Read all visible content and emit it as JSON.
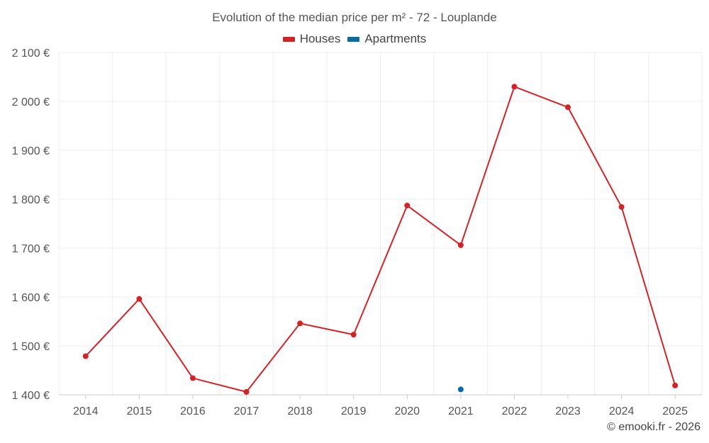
{
  "chart_data": {
    "type": "line",
    "title": "Evolution of the median price per m² - 72 - Louplande",
    "categories": [
      "2014",
      "2015",
      "2016",
      "2017",
      "2018",
      "2019",
      "2020",
      "2021",
      "2022",
      "2023",
      "2024",
      "2025"
    ],
    "series": [
      {
        "name": "Houses",
        "color": "#d22327",
        "values": [
          1479,
          1596,
          1434,
          1406,
          1546,
          1523,
          1787,
          1706,
          2030,
          1988,
          1784,
          1419
        ]
      },
      {
        "name": "Apartments",
        "color": "#0b6aa2",
        "values": [
          null,
          null,
          null,
          null,
          null,
          null,
          null,
          1411,
          null,
          null,
          null,
          null
        ]
      }
    ],
    "ylim": [
      1400,
      2100
    ],
    "yticks": [
      1400,
      1500,
      1600,
      1700,
      1800,
      1900,
      2000,
      2100
    ],
    "ytick_labels": [
      "1 400 €",
      "1 500 €",
      "1 600 €",
      "1 700 €",
      "1 800 €",
      "1 900 €",
      "2 000 €",
      "2 100 €"
    ],
    "grid": true,
    "legend_position": "top-center",
    "xlabel": "",
    "ylabel": ""
  },
  "credit": "© emooki.fr - 2026"
}
